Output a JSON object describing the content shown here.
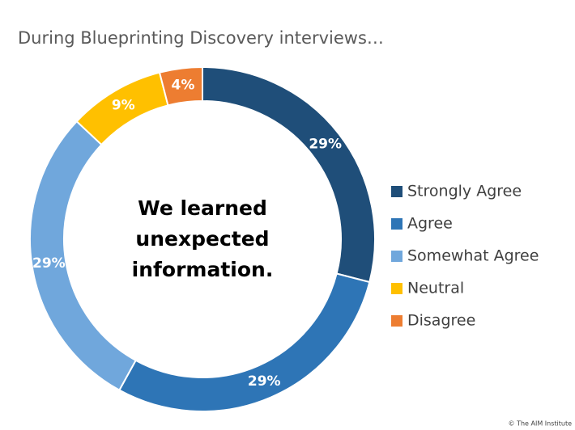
{
  "chart_data": {
    "type": "donut",
    "title": "During Blueprinting Discovery interviews…",
    "center_text": [
      "We learned",
      "unexpected",
      "information."
    ],
    "categories": [
      "Strongly Agree",
      "Agree",
      "Somewhat Agree",
      "Neutral",
      "Disagree"
    ],
    "values": [
      29,
      29,
      29,
      9,
      4
    ],
    "value_labels": [
      "29%",
      "29%",
      "29%",
      "9%",
      "4%"
    ],
    "colors": [
      "#1f4e79",
      "#2e75b6",
      "#70a7dc",
      "#ffc000",
      "#ed7d31"
    ],
    "legend": "right",
    "footnote": "© The AIM Institute"
  }
}
